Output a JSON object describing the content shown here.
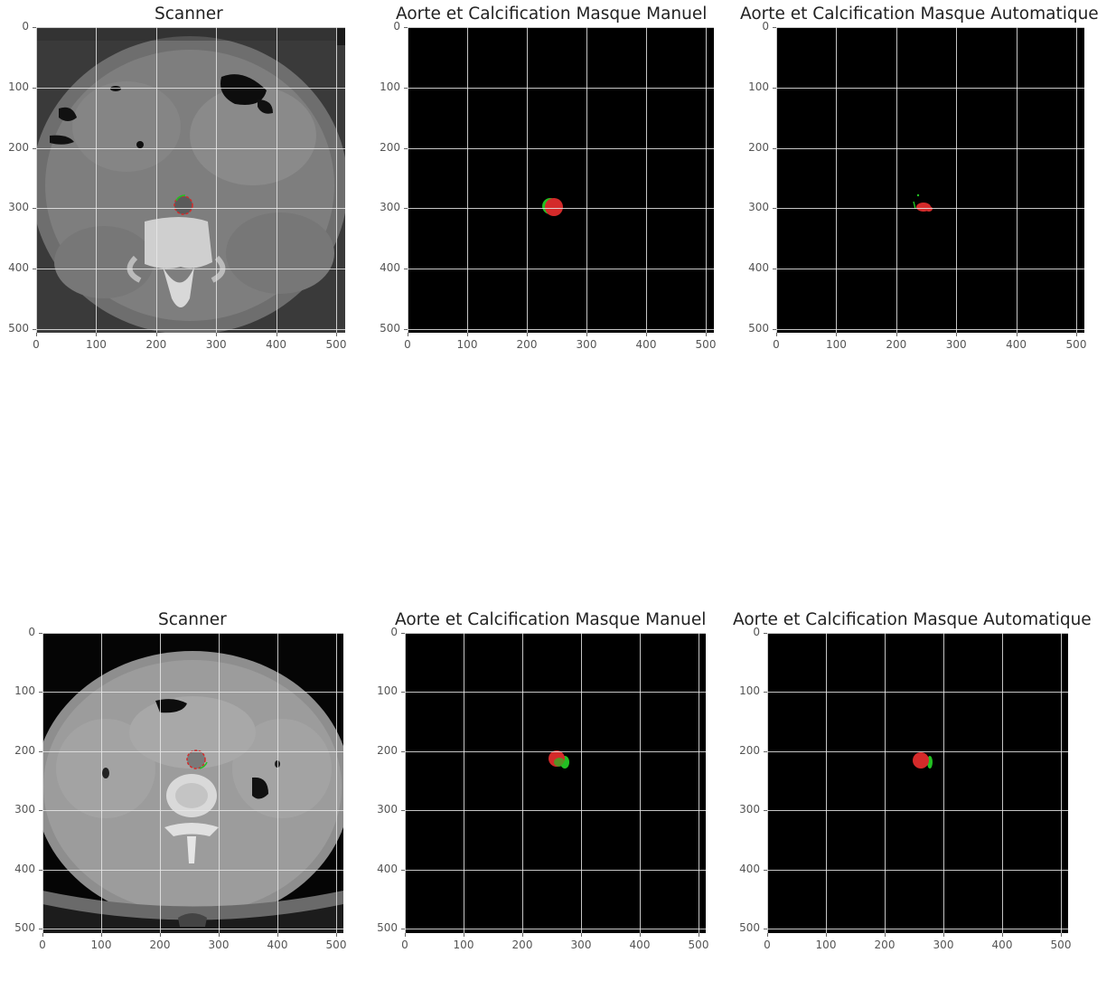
{
  "rows": [
    {
      "panels": [
        {
          "title": "Scanner",
          "kind": "ct1"
        },
        {
          "title": "Aorte et Calcification Masque Manuel",
          "kind": "mask"
        },
        {
          "title": "Aorte et Calcification Masque Automatique",
          "kind": "mask"
        }
      ]
    },
    {
      "panels": [
        {
          "title": "Scanner",
          "kind": "ct2"
        },
        {
          "title": "Aorte et Calcification Masque Manuel",
          "kind": "mask"
        },
        {
          "title": "Aorte et Calcification Masque Automatique",
          "kind": "mask"
        }
      ]
    }
  ],
  "axis": {
    "x_ticks": [
      "0",
      "100",
      "200",
      "300",
      "400",
      "500"
    ],
    "y_ticks": [
      "0",
      "100",
      "200",
      "300",
      "400",
      "500"
    ]
  },
  "colors": {
    "manual_mask": "#22c022",
    "calcification": "#d42a2a",
    "grid": "#e8e8e8",
    "mask_bg": "#000000"
  }
}
